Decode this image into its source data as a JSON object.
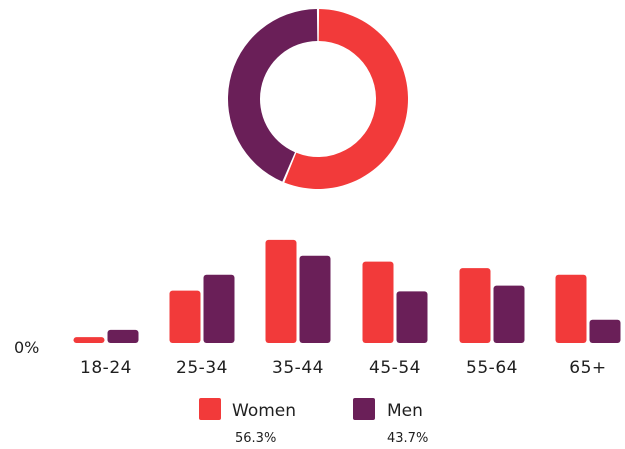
{
  "chart_data": [
    {
      "type": "pie",
      "variant": "donut",
      "slices": [
        {
          "label": "Women",
          "value": 56.3,
          "color": "#f23a3a"
        },
        {
          "label": "Men",
          "value": 43.7,
          "color": "#6a1f58"
        }
      ]
    },
    {
      "type": "bar",
      "categories": [
        "18-24",
        "25-34",
        "35-44",
        "45-54",
        "55-64",
        "65+"
      ],
      "series": [
        {
          "name": "Women",
          "color": "#f23a3a",
          "values": [
            0.8,
            7.2,
            14.2,
            11.2,
            10.3,
            9.4
          ]
        },
        {
          "name": "Men",
          "color": "#6a1f58",
          "values": [
            1.8,
            9.4,
            12.0,
            7.1,
            7.9,
            3.2
          ]
        }
      ],
      "ylim": [
        0,
        15
      ],
      "zero_label": "0%",
      "grid": false,
      "legend": {
        "position": "bottom",
        "items": [
          {
            "label": "Women",
            "percent": "56.3%",
            "color": "#f23a3a"
          },
          {
            "label": "Men",
            "percent": "43.7%",
            "color": "#6a1f58"
          }
        ]
      }
    }
  ]
}
